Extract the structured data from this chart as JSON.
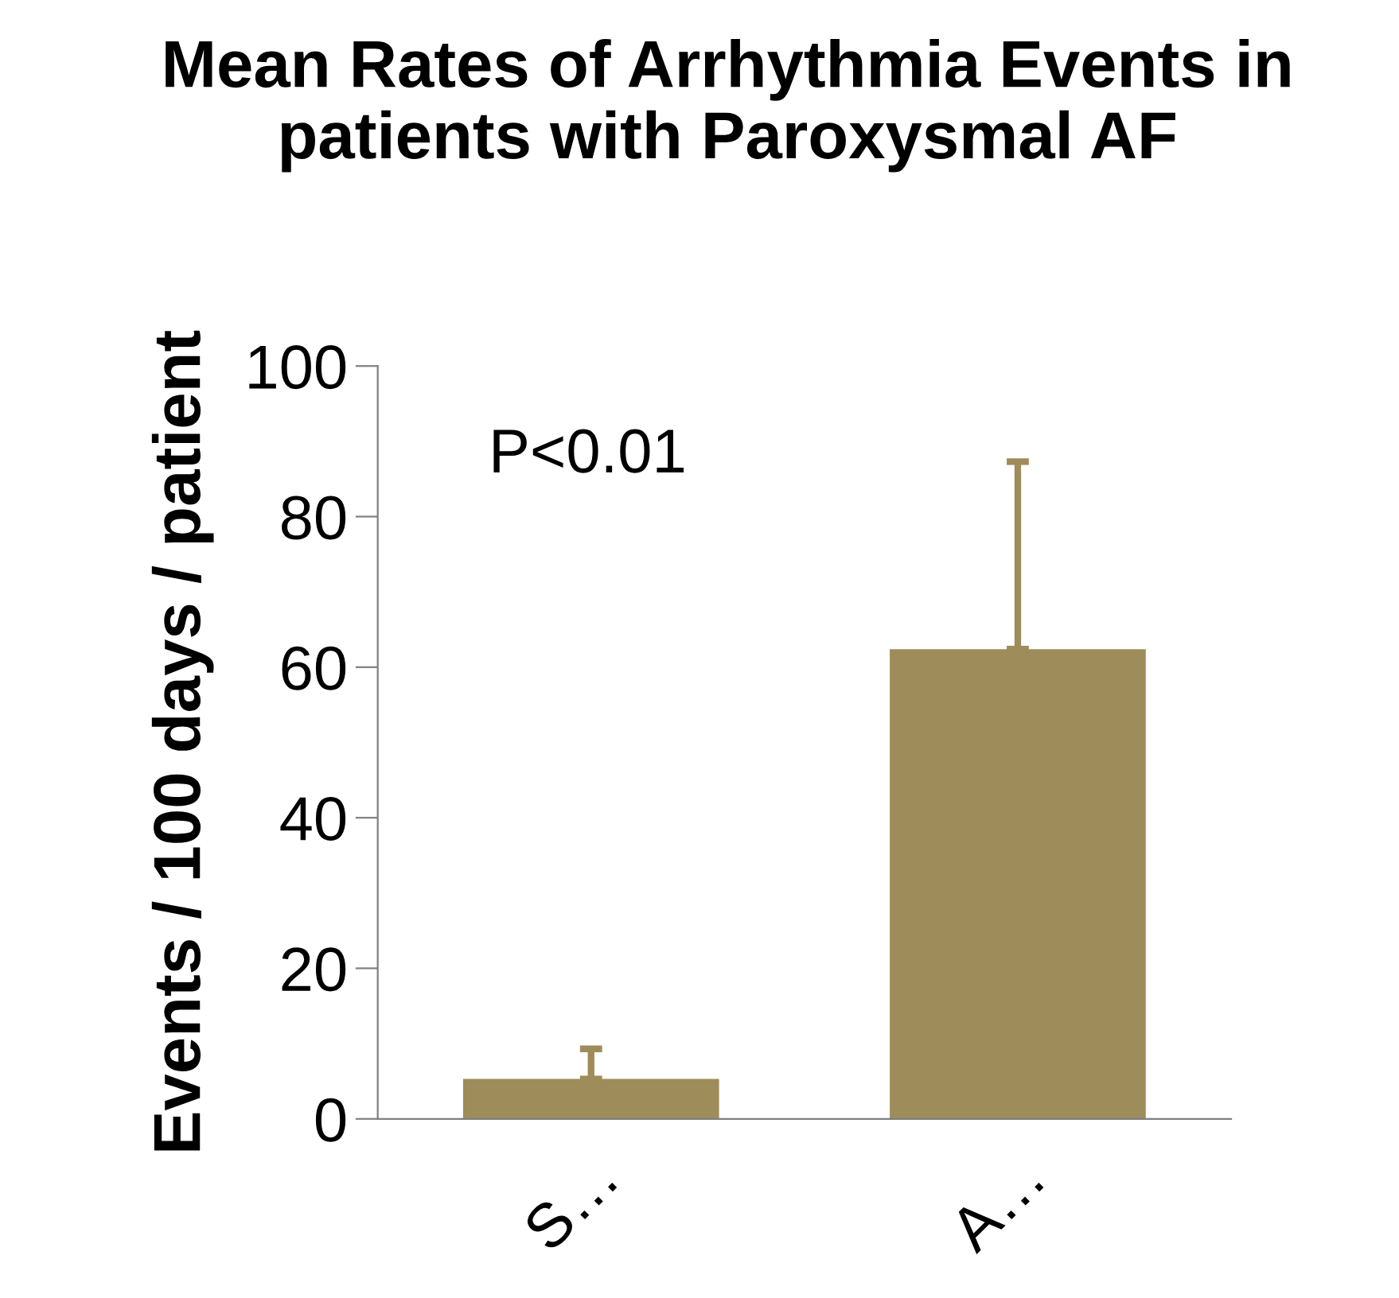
{
  "chart_data": {
    "type": "bar",
    "title": "Mean Rates of Arrhythmia Events in patients with Paroxysmal AF",
    "ylabel": "Events / 100 days / patient",
    "categories": [
      "S…",
      "A…"
    ],
    "values": [
      5.3,
      62.4
    ],
    "errors": [
      [
        5.3,
        9.3
      ],
      [
        62.4,
        87.3
      ]
    ],
    "color": "#9e8c5a",
    "ylim": [
      0,
      100
    ],
    "yticks": [
      0,
      20,
      40,
      60,
      80,
      100
    ],
    "annotations": [
      "P<0.01"
    ]
  }
}
